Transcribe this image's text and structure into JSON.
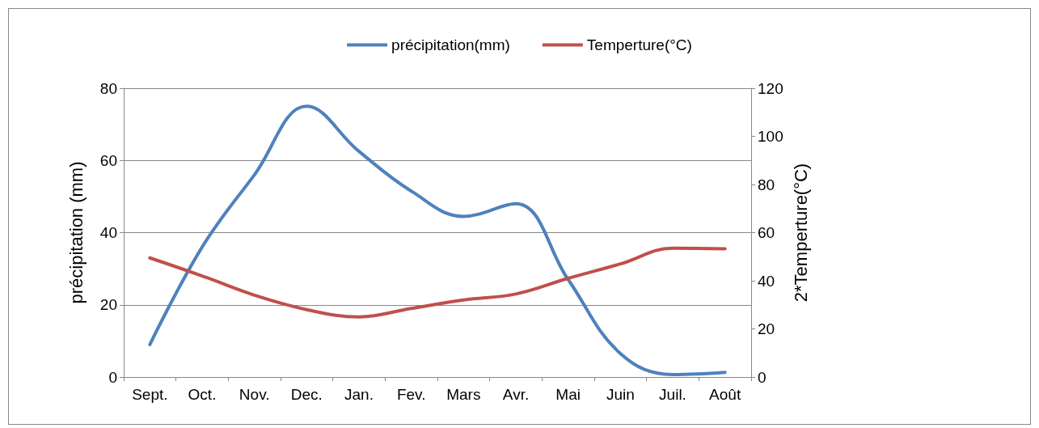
{
  "chart_data": {
    "type": "line",
    "ylabel": "précipitation (mm)",
    "y2label": "2*Temperture(°C)",
    "categories": [
      "Sept.",
      "Oct.",
      "Nov.",
      "Dec.",
      "Jan.",
      "Fev.",
      "Mars",
      "Avr.",
      "Mai",
      "Juin",
      "Juil.",
      "Août"
    ],
    "series": [
      {
        "name": "précipitation(mm)",
        "color": "#4f81bd",
        "values": [
          9,
          36,
          56,
          75,
          62.5,
          51.5,
          44.5,
          48,
          27,
          6.5,
          0.7,
          1.3
        ]
      },
      {
        "name": "Temperture(°C)",
        "color": "#c0504d",
        "axis": "y2",
        "values": [
          49.5,
          42,
          34,
          28,
          25,
          28.5,
          32,
          34.5,
          41,
          47,
          53.5,
          53.3
        ]
      }
    ],
    "ylim": [
      0,
      80
    ],
    "yticks": [
      0,
      20,
      40,
      60,
      80
    ],
    "y2lim": [
      0,
      120
    ],
    "y2ticks": [
      0,
      20,
      40,
      60,
      80,
      100,
      120
    ],
    "grid": "y",
    "legend": "top",
    "marker": "none",
    "line_style": "solid"
  }
}
